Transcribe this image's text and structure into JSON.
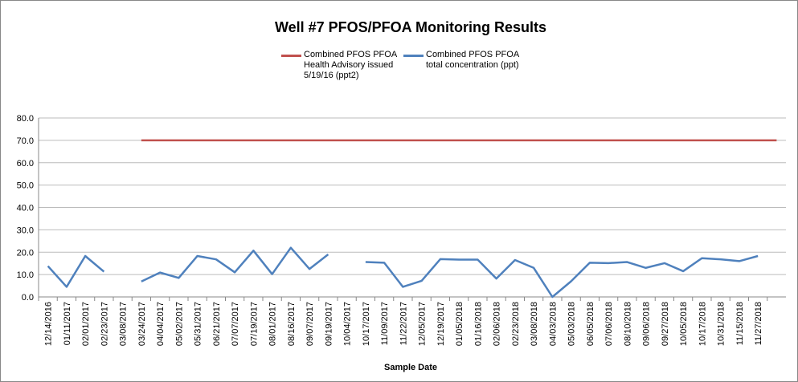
{
  "chart_data": {
    "type": "line",
    "title": "Well #7 PFOS/PFOA Monitoring Results",
    "x_label": "Sample Date",
    "categories": [
      "12/14/2016",
      "01/11/2017",
      "02/01/2017",
      "02/23/2017",
      "03/08/2017",
      "03/24/2017",
      "04/04/2017",
      "05/02/2017",
      "05/31/2017",
      "06/21/2017",
      "07/07/2017",
      "07/19/2017",
      "08/01/2017",
      "08/16/2017",
      "09/07/2017",
      "09/19/2017",
      "10/04/2017",
      "10/17/2017",
      "11/09/2017",
      "11/22/2017",
      "12/05/2017",
      "12/19/2017",
      "01/05/2018",
      "01/16/2018",
      "02/06/2018",
      "02/23/2018",
      "03/08/2018",
      "04/03/2018",
      "05/03/2018",
      "06/05/2018",
      "07/06/2018",
      "08/10/2018",
      "09/06/2018",
      "09/27/2018",
      "10/05/2018",
      "10/17/2018",
      "10/31/2018",
      "11/15/2018",
      "11/27/2018",
      null
    ],
    "series": [
      {
        "name": "Combined PFOS PFOA Health Advisory  issued 5/19/16 (ppt2)",
        "color": "#c0504d",
        "values": [
          null,
          null,
          null,
          null,
          null,
          70,
          70,
          70,
          70,
          70,
          70,
          70,
          70,
          70,
          70,
          70,
          70,
          70,
          70,
          70,
          70,
          70,
          70,
          70,
          70,
          70,
          70,
          70,
          70,
          70,
          70,
          70,
          70,
          70,
          70,
          70,
          70,
          70,
          70,
          70
        ]
      },
      {
        "name": "Combined PFOS PFOA total concentration (ppt)",
        "color": "#4f81bd",
        "values": [
          13.8,
          4.5,
          18.3,
          11.3,
          null,
          6.9,
          10.9,
          8.5,
          18.3,
          16.8,
          11.0,
          20.7,
          10.2,
          22.0,
          12.5,
          19.0,
          null,
          15.6,
          15.3,
          4.5,
          7.2,
          16.9,
          16.7,
          16.7,
          8.2,
          16.5,
          13.0,
          0.0,
          7.0,
          15.3,
          15.1,
          15.6,
          13.0,
          15.1,
          11.5,
          17.3,
          16.8,
          16.0,
          18.3,
          null
        ]
      }
    ],
    "ylim": [
      0,
      80
    ],
    "yticks": [
      {
        "value": 0,
        "label": "0.0"
      },
      {
        "value": 10,
        "label": "10.0"
      },
      {
        "value": 20,
        "label": "20.0"
      },
      {
        "value": 30,
        "label": "30.0"
      },
      {
        "value": 40,
        "label": "40.0"
      },
      {
        "value": 50,
        "label": "50.0"
      },
      {
        "value": 60,
        "label": "60.0"
      },
      {
        "value": 70,
        "label": "70.0"
      },
      {
        "value": 80,
        "label": "80.0"
      }
    ],
    "grid": true
  }
}
